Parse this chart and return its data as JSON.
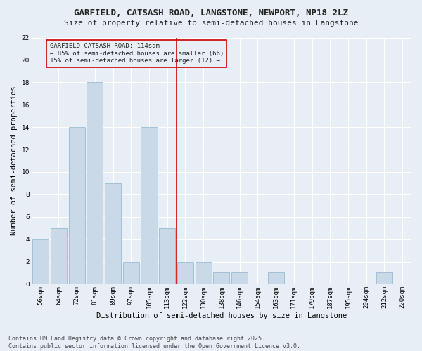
{
  "title": "GARFIELD, CATSASH ROAD, LANGSTONE, NEWPORT, NP18 2LZ",
  "subtitle": "Size of property relative to semi-detached houses in Langstone",
  "xlabel": "Distribution of semi-detached houses by size in Langstone",
  "ylabel": "Number of semi-detached properties",
  "categories": [
    "56sqm",
    "64sqm",
    "72sqm",
    "81sqm",
    "89sqm",
    "97sqm",
    "105sqm",
    "113sqm",
    "122sqm",
    "130sqm",
    "138sqm",
    "146sqm",
    "154sqm",
    "163sqm",
    "171sqm",
    "179sqm",
    "187sqm",
    "195sqm",
    "204sqm",
    "212sqm",
    "220sqm"
  ],
  "values": [
    4,
    5,
    14,
    18,
    9,
    2,
    14,
    5,
    2,
    2,
    1,
    1,
    0,
    1,
    0,
    0,
    0,
    0,
    0,
    1,
    0
  ],
  "bar_color": "#c9d9e8",
  "bar_edge_color": "#8ab4cc",
  "vline_color": "#cc0000",
  "ylim": [
    0,
    22
  ],
  "yticks": [
    0,
    2,
    4,
    6,
    8,
    10,
    12,
    14,
    16,
    18,
    20,
    22
  ],
  "annotation_title": "GARFIELD CATSASH ROAD: 114sqm",
  "annotation_line1": "← 85% of semi-detached houses are smaller (66)",
  "annotation_line2": "15% of semi-detached houses are larger (12) →",
  "annotation_box_color": "#cc0000",
  "footer_line1": "Contains HM Land Registry data © Crown copyright and database right 2025.",
  "footer_line2": "Contains public sector information licensed under the Open Government Licence v3.0.",
  "bg_color": "#e8eef5",
  "grid_color": "#ffffff",
  "title_fontsize": 9,
  "subtitle_fontsize": 8,
  "axis_label_fontsize": 7.5,
  "tick_fontsize": 6.5,
  "annotation_fontsize": 6.5,
  "footer_fontsize": 6
}
